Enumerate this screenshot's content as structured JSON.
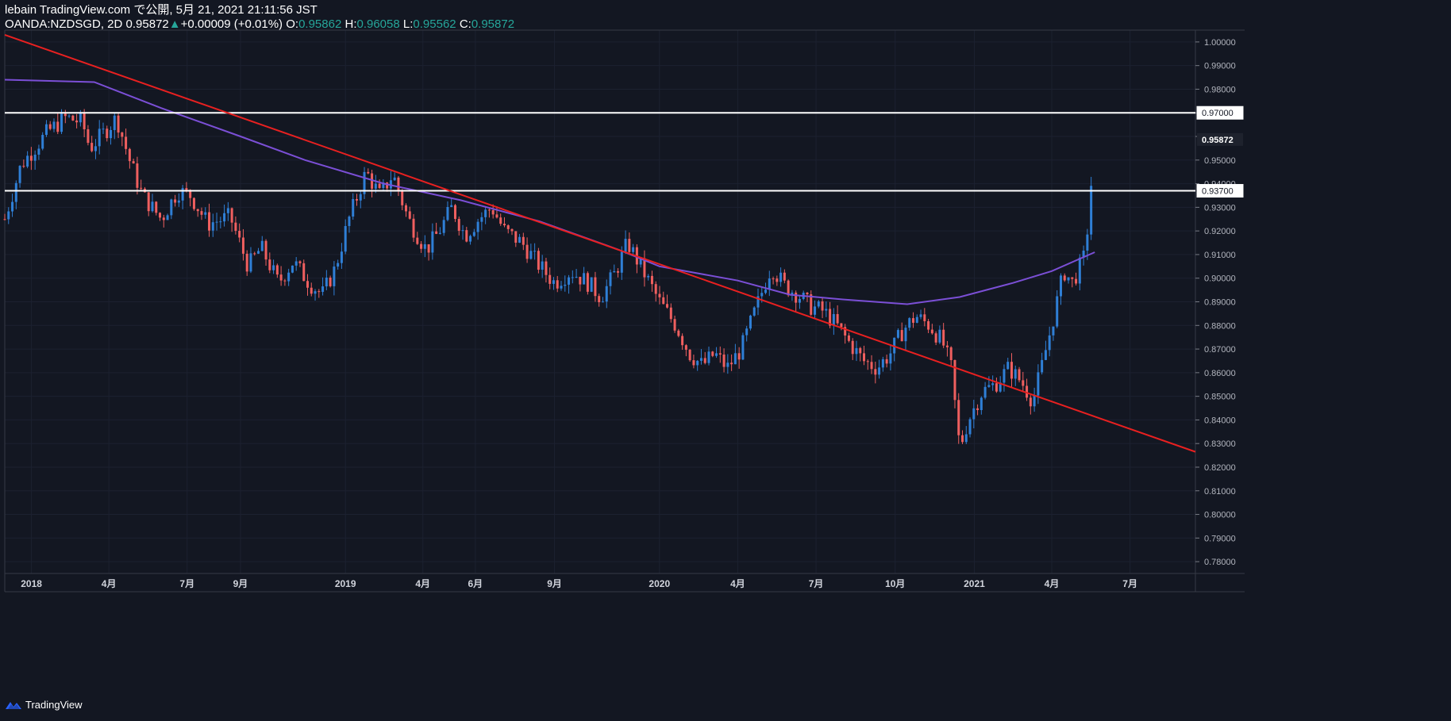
{
  "header": {
    "published_line": "lebain TradingView.com で公開, 5月 21, 2021 21:11:56 JST",
    "symbol": "OANDA:NZDSGD, 2D",
    "last": "0.95872",
    "change_arrow": "▲",
    "change": "+0.00009 (+0.01%)",
    "o_label": "O:",
    "o_value": "0.95862",
    "h_label": "H:",
    "h_value": "0.96058",
    "l_label": "L:",
    "l_value": "0.95562",
    "c_label": "C:",
    "c_value": "0.95872"
  },
  "footer": {
    "brand": "TradingView",
    "logo_icon": "tradingview-logo-icon"
  },
  "colors": {
    "background": "#131722",
    "up": "#2f7fd6",
    "down": "#ef5f5f",
    "ma": "#7b4fd6",
    "trendline": "#e82020",
    "level": "#ffffff",
    "grid": "#1c2130",
    "axis_text": "#b2b5be"
  },
  "chart_data": {
    "type": "candlestick",
    "ylim": [
      0.775,
      1.005
    ],
    "y_ticks": [
      "1.00000",
      "0.99000",
      "0.98000",
      "0.97000",
      "0.96000",
      "0.95000",
      "0.94000",
      "0.93000",
      "0.92000",
      "0.91000",
      "0.90000",
      "0.89000",
      "0.88000",
      "0.87000",
      "0.86000",
      "0.85000",
      "0.84000",
      "0.83000",
      "0.82000",
      "0.81000",
      "0.80000",
      "0.79000",
      "0.78000"
    ],
    "x_ticks": [
      "2018",
      "4月",
      "7月",
      "9月",
      "2019",
      "4月",
      "6月",
      "9月",
      "2020",
      "4月",
      "7月",
      "10月",
      "2021",
      "4月",
      "7月"
    ],
    "x_dates": [
      "2018-01-01",
      "2018-04-01",
      "2018-07-01",
      "2018-09-01",
      "2019-01-01",
      "2019-04-01",
      "2019-06-01",
      "2019-09-01",
      "2020-01-01",
      "2020-04-01",
      "2020-07-01",
      "2020-10-01",
      "2021-01-01",
      "2021-04-01",
      "2021-07-01"
    ],
    "price_labels": [
      {
        "value": 0.97,
        "text": "0.97000",
        "type": "level"
      },
      {
        "value": 0.937,
        "text": "0.93700",
        "type": "level"
      },
      {
        "value": 0.95872,
        "text": "0.95872",
        "type": "last"
      }
    ],
    "horizontal_levels": [
      0.97,
      0.937
    ],
    "trendline": {
      "start": [
        "2017-12-01",
        1.003
      ],
      "end": [
        "2021-09-15",
        0.8265
      ]
    },
    "moving_average": {
      "points": [
        [
          "2017-12-01",
          0.984
        ],
        [
          "2018-03-15",
          0.983
        ],
        [
          "2018-06-01",
          0.972
        ],
        [
          "2018-09-01",
          0.96
        ],
        [
          "2018-11-15",
          0.95
        ],
        [
          "2019-02-15",
          0.94
        ],
        [
          "2019-05-15",
          0.933
        ],
        [
          "2019-08-15",
          0.924
        ],
        [
          "2019-11-15",
          0.912
        ],
        [
          "2020-01-01",
          0.905
        ],
        [
          "2020-04-01",
          0.899
        ],
        [
          "2020-06-01",
          0.893
        ],
        [
          "2020-08-01",
          0.891
        ],
        [
          "2020-10-15",
          0.889
        ],
        [
          "2020-12-15",
          0.892
        ],
        [
          "2021-02-15",
          0.898
        ],
        [
          "2021-04-01",
          0.903
        ],
        [
          "2021-05-21",
          0.911
        ]
      ]
    },
    "close_path": [
      [
        "2017-12-01",
        0.925
      ],
      [
        "2017-12-20",
        0.948
      ],
      [
        "2018-01-20",
        0.962
      ],
      [
        "2018-02-10",
        0.968
      ],
      [
        "2018-03-01",
        0.966
      ],
      [
        "2018-03-10",
        0.955
      ],
      [
        "2018-04-01",
        0.964
      ],
      [
        "2018-04-10",
        0.968
      ],
      [
        "2018-04-25",
        0.95
      ],
      [
        "2018-05-10",
        0.935
      ],
      [
        "2018-06-01",
        0.925
      ],
      [
        "2018-06-20",
        0.937
      ],
      [
        "2018-07-05",
        0.935
      ],
      [
        "2018-07-25",
        0.923
      ],
      [
        "2018-08-20",
        0.926
      ],
      [
        "2018-09-10",
        0.905
      ],
      [
        "2018-09-25",
        0.913
      ],
      [
        "2018-10-15",
        0.898
      ],
      [
        "2018-11-01",
        0.907
      ],
      [
        "2018-11-20",
        0.898
      ],
      [
        "2018-12-05",
        0.893
      ],
      [
        "2018-12-20",
        0.904
      ],
      [
        "2019-01-05",
        0.925
      ],
      [
        "2019-01-25",
        0.945
      ],
      [
        "2019-02-10",
        0.935
      ],
      [
        "2019-02-25",
        0.944
      ],
      [
        "2019-03-15",
        0.925
      ],
      [
        "2019-04-05",
        0.912
      ],
      [
        "2019-04-20",
        0.92
      ],
      [
        "2019-05-05",
        0.93
      ],
      [
        "2019-05-20",
        0.918
      ],
      [
        "2019-06-05",
        0.925
      ],
      [
        "2019-06-20",
        0.93
      ],
      [
        "2019-07-05",
        0.92
      ],
      [
        "2019-07-25",
        0.915
      ],
      [
        "2019-08-15",
        0.905
      ],
      [
        "2019-09-01",
        0.898
      ],
      [
        "2019-09-20",
        0.903
      ],
      [
        "2019-10-10",
        0.898
      ],
      [
        "2019-10-25",
        0.892
      ],
      [
        "2019-11-10",
        0.902
      ],
      [
        "2019-11-25",
        0.915
      ],
      [
        "2019-12-10",
        0.905
      ],
      [
        "2020-01-01",
        0.89
      ],
      [
        "2020-01-20",
        0.88
      ],
      [
        "2020-02-05",
        0.868
      ],
      [
        "2020-02-20",
        0.863
      ],
      [
        "2020-03-05",
        0.868
      ],
      [
        "2020-03-20",
        0.862
      ],
      [
        "2020-04-05",
        0.87
      ],
      [
        "2020-04-25",
        0.89
      ],
      [
        "2020-05-10",
        0.905
      ],
      [
        "2020-05-25",
        0.897
      ],
      [
        "2020-06-10",
        0.893
      ],
      [
        "2020-06-25",
        0.888
      ],
      [
        "2020-07-10",
        0.886
      ],
      [
        "2020-07-25",
        0.88
      ],
      [
        "2020-08-10",
        0.872
      ],
      [
        "2020-08-25",
        0.865
      ],
      [
        "2020-09-10",
        0.862
      ],
      [
        "2020-09-25",
        0.868
      ],
      [
        "2020-10-10",
        0.878
      ],
      [
        "2020-10-25",
        0.884
      ],
      [
        "2020-11-10",
        0.88
      ],
      [
        "2020-11-25",
        0.873
      ],
      [
        "2020-12-05",
        0.862
      ],
      [
        "2020-12-15",
        0.828
      ],
      [
        "2020-12-25",
        0.84
      ],
      [
        "2021-01-10",
        0.852
      ],
      [
        "2021-01-25",
        0.855
      ],
      [
        "2021-02-10",
        0.862
      ],
      [
        "2021-02-25",
        0.856
      ],
      [
        "2021-03-10",
        0.848
      ],
      [
        "2021-03-20",
        0.862
      ],
      [
        "2021-04-01",
        0.88
      ],
      [
        "2021-04-15",
        0.903
      ],
      [
        "2021-04-25",
        0.898
      ],
      [
        "2021-05-10",
        0.91
      ],
      [
        "2021-05-21",
        0.958
      ]
    ],
    "note": "Candles generated from an approximate price path; the OHLC header shows the latest bar."
  }
}
